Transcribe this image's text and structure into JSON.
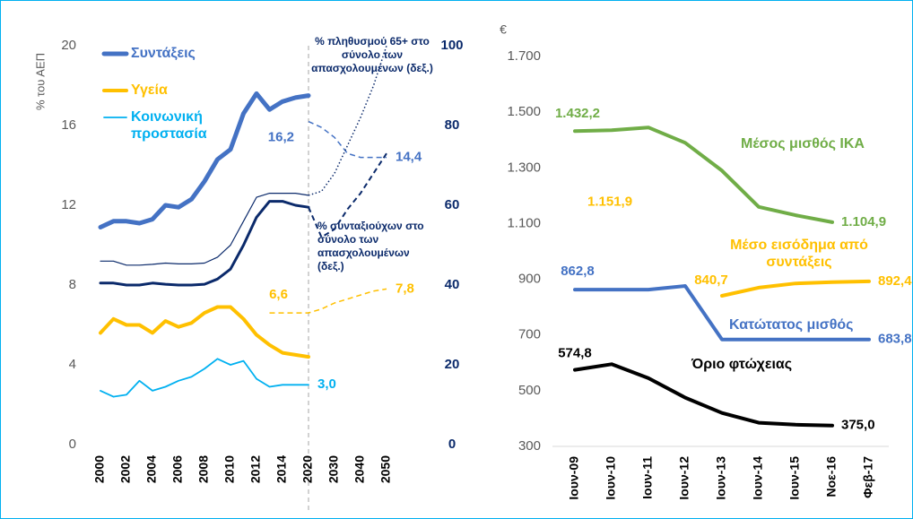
{
  "chart_data": [
    {
      "type": "line",
      "y_label": "% του ΑΕΠ",
      "categories": [
        "2000",
        null,
        "2002",
        null,
        "2004",
        null,
        "2006",
        null,
        "2008",
        null,
        "2010",
        null,
        "2012",
        null,
        "2014",
        null,
        "2020",
        null,
        "2030",
        null,
        "2040",
        null,
        "2050"
      ],
      "ylim": [
        0,
        20
      ],
      "yticks": [
        0,
        4,
        8,
        12,
        16,
        20
      ],
      "y2lim": [
        0,
        100
      ],
      "y2ticks": [
        0,
        20,
        40,
        60,
        80,
        100
      ],
      "series": [
        {
          "name": "Συντάξεις",
          "color": "#4472c4",
          "style": "solid",
          "width": 5,
          "values": [
            10.9,
            11.2,
            11.2,
            11.1,
            11.3,
            12.0,
            11.9,
            12.3,
            13.2,
            14.3,
            14.8,
            16.6,
            17.6,
            16.8,
            17.2,
            17.4,
            17.5,
            null,
            null,
            null,
            null,
            null,
            null
          ]
        },
        {
          "color": "#4472c4",
          "style": "dashed",
          "width": 1.5,
          "values": [
            null,
            null,
            null,
            null,
            null,
            null,
            null,
            null,
            null,
            null,
            null,
            null,
            null,
            null,
            null,
            null,
            16.2,
            15.9,
            15.4,
            14.6,
            14.4,
            14.4,
            14.4
          ],
          "value_labels": [
            null,
            null,
            null,
            null,
            null,
            null,
            null,
            null,
            null,
            null,
            null,
            null,
            null,
            null,
            null,
            null,
            "16,2",
            null,
            null,
            null,
            null,
            null,
            "14,4"
          ]
        },
        {
          "name": "Υγεία",
          "color": "#ffc000",
          "style": "solid",
          "width": 4,
          "values": [
            5.6,
            6.3,
            6.0,
            6.0,
            5.6,
            6.2,
            5.9,
            6.1,
            6.6,
            6.9,
            6.9,
            6.3,
            5.5,
            5.0,
            4.6,
            4.5,
            4.4,
            null,
            null,
            null,
            null,
            null,
            null
          ]
        },
        {
          "color": "#ffc000",
          "style": "dashed",
          "width": 1.5,
          "values": [
            null,
            null,
            null,
            null,
            null,
            null,
            null,
            null,
            null,
            null,
            null,
            null,
            null,
            6.6,
            6.6,
            6.6,
            6.6,
            6.8,
            7.1,
            7.3,
            7.5,
            7.7,
            7.8
          ],
          "value_labels": [
            null,
            null,
            null,
            null,
            null,
            null,
            null,
            null,
            null,
            null,
            null,
            null,
            null,
            "6,6",
            null,
            null,
            null,
            null,
            null,
            null,
            null,
            null,
            "7,8"
          ]
        },
        {
          "name": "Κοινωνική προστασία",
          "color": "#00b0f0",
          "style": "solid",
          "width": 1.8,
          "values": [
            2.7,
            2.4,
            2.5,
            3.2,
            2.7,
            2.9,
            3.2,
            3.4,
            3.8,
            4.3,
            4.0,
            4.2,
            3.3,
            2.9,
            3.0,
            3.0,
            3.0,
            null,
            null,
            null,
            null,
            null,
            null
          ],
          "value_labels": [
            null,
            null,
            null,
            null,
            null,
            null,
            null,
            null,
            null,
            null,
            null,
            null,
            null,
            null,
            null,
            null,
            "3,0",
            null,
            null,
            null,
            null,
            null,
            null
          ]
        },
        {
          "color": "#0b2a6b",
          "style": "solid",
          "width": 3,
          "axis": "y2",
          "values": [
            40.5,
            40.5,
            40,
            40,
            40.5,
            40.2,
            40,
            40,
            40.2,
            41.5,
            44,
            50,
            57,
            61,
            61,
            60,
            59.5,
            null,
            null,
            null,
            null,
            null,
            null
          ]
        },
        {
          "color": "#0b2a6b",
          "style": "solid",
          "width": 1.2,
          "axis": "y2",
          "values": [
            46,
            46,
            45,
            45,
            45.2,
            45.5,
            45.3,
            45.3,
            45.5,
            47,
            50,
            56,
            62,
            63,
            63,
            63,
            62.5,
            null,
            null,
            null,
            null,
            null,
            null
          ]
        },
        {
          "name": "% πληθυσμού 65+ στο σύνολο των απασχολουμένων (δεξ.)",
          "color": "#0b2a6b",
          "style": "dotted",
          "width": 1.5,
          "axis": "y2",
          "values": [
            null,
            null,
            null,
            null,
            null,
            null,
            null,
            null,
            null,
            null,
            null,
            null,
            null,
            null,
            null,
            null,
            62.5,
            63.5,
            68,
            75,
            82,
            90,
            100
          ]
        },
        {
          "name": "% συνταξιούχων στο σύνολο των απασχολουμένων (δεξ.)",
          "color": "#0b2a6b",
          "style": "dashed",
          "width": 2,
          "axis": "y2",
          "values": [
            null,
            null,
            null,
            null,
            null,
            null,
            null,
            null,
            null,
            null,
            null,
            null,
            null,
            null,
            null,
            null,
            59.5,
            52,
            54,
            59,
            63,
            68,
            73
          ]
        }
      ]
    },
    {
      "type": "line",
      "y_label": "€",
      "categories": [
        "Ιουν-09",
        "Ιουν-10",
        "Ιουν-11",
        "Ιουν-12",
        "Ιουν-13",
        "Ιουν-14",
        "Ιουν-15",
        "Νοε-16",
        "Φεβ-17"
      ],
      "ylim": [
        300,
        1700
      ],
      "yticks": [
        300,
        500,
        700,
        900,
        {
          "value": 1100,
          "label": "1.100"
        },
        {
          "value": 1300,
          "label": "1.300"
        },
        {
          "value": 1500,
          "label": "1.500"
        },
        {
          "value": 1700,
          "label": "1.700"
        }
      ],
      "series": [
        {
          "name": "Μέσος μισθός ΙΚΑ",
          "color": "#70ad47",
          "style": "solid",
          "width": 4,
          "values": [
            1432.2,
            1435,
            1445,
            1390,
            1290,
            1160,
            1130,
            1104.9,
            null
          ],
          "value_labels": [
            "1.432,2",
            null,
            null,
            null,
            null,
            null,
            null,
            "1.104,9",
            null
          ]
        },
        {
          "color": "#ffc000",
          "style": "dashed",
          "width": 1.5,
          "values": [
            1151.9,
            null,
            null,
            null,
            840.7,
            null,
            null,
            null,
            null
          ],
          "value_labels": [
            "1.151,9",
            null,
            null,
            null,
            "840,7",
            null,
            null,
            null,
            null
          ]
        },
        {
          "name": "Μέσο εισόδημα από συντάξεις",
          "color": "#ffc000",
          "style": "solid",
          "width": 4,
          "values": [
            null,
            null,
            null,
            null,
            840.7,
            870,
            885,
            890,
            892.4
          ],
          "value_labels": [
            null,
            null,
            null,
            null,
            null,
            null,
            null,
            null,
            "892,4"
          ]
        },
        {
          "name": "Κατώτατος μισθός",
          "color": "#4472c4",
          "style": "solid",
          "width": 4,
          "values": [
            862.8,
            862.8,
            862.8,
            876,
            683.8,
            683.8,
            683.8,
            683.8,
            683.8
          ],
          "value_labels": [
            "862,8",
            null,
            null,
            null,
            null,
            null,
            null,
            null,
            "683,8"
          ]
        },
        {
          "name": "Όριο φτώχειας",
          "color": "#000000",
          "style": "solid",
          "width": 4,
          "values": [
            574.8,
            595,
            545,
            475,
            420,
            385,
            378,
            375.0,
            null
          ],
          "value_labels": [
            "574,8",
            null,
            null,
            null,
            null,
            null,
            null,
            "375,0",
            null
          ]
        }
      ]
    }
  ]
}
